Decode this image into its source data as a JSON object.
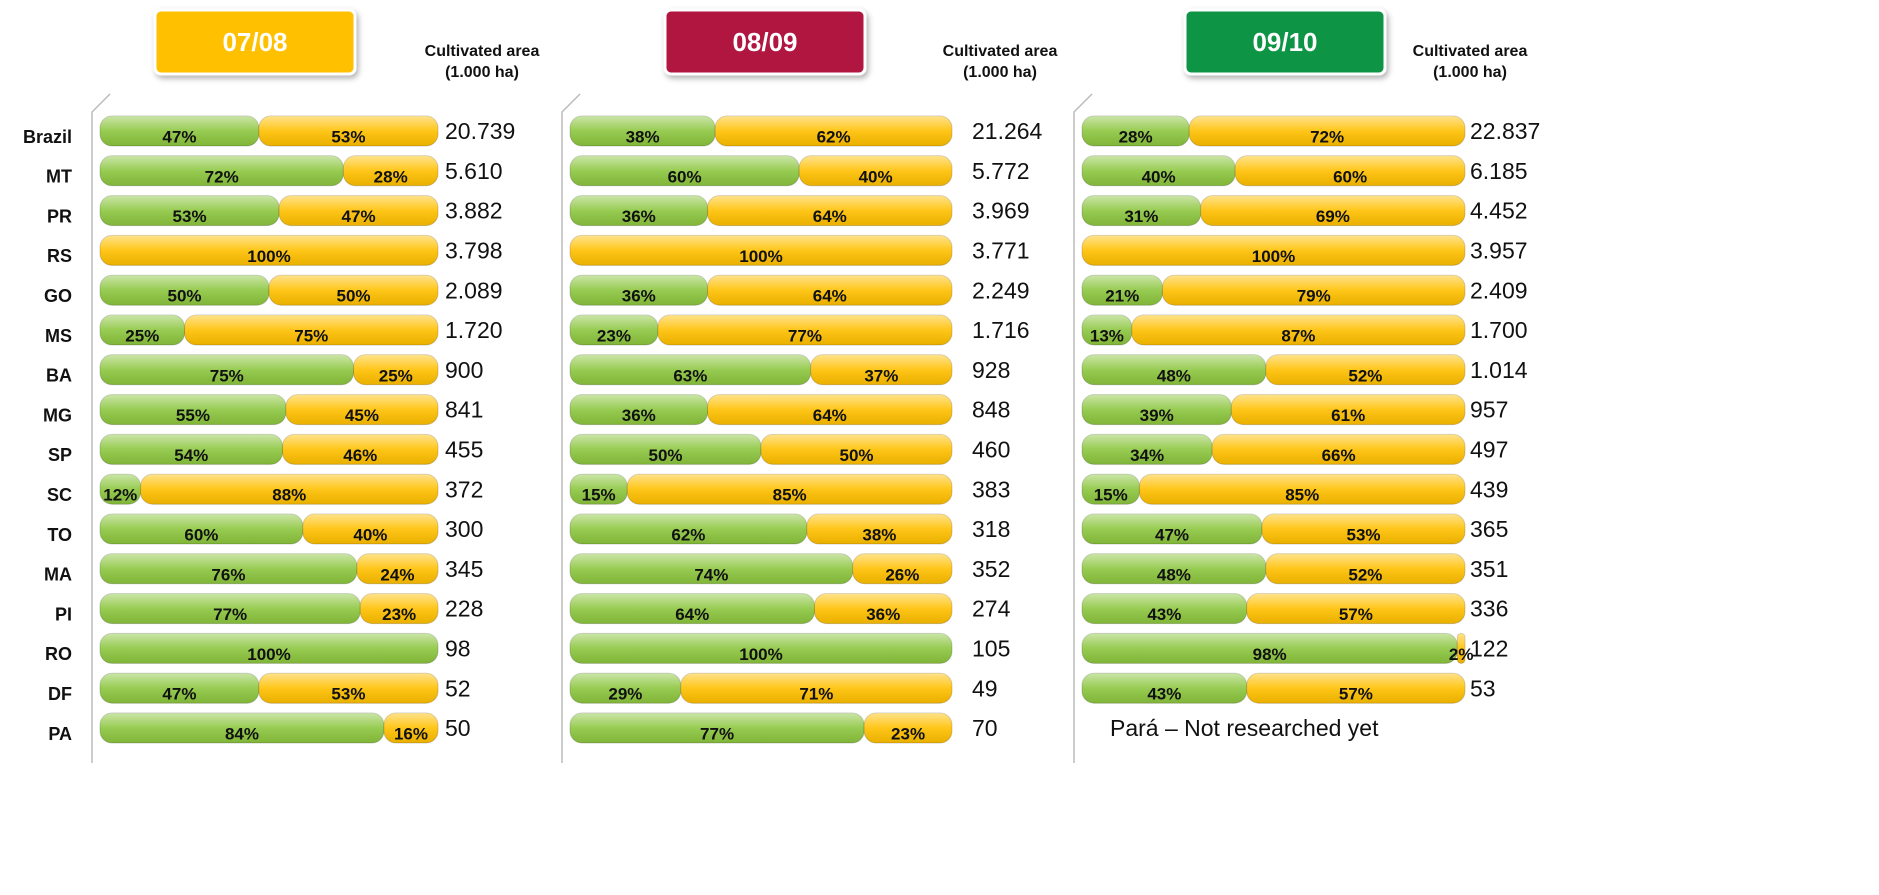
{
  "chart_data": [
    {
      "type": "bar",
      "stacked": true,
      "orientation": "horizontal",
      "title": "07/08",
      "title_color": "#ffc000",
      "subtitle": "Cultivated area",
      "unit": "(1.000 ha)",
      "categories": [
        "Brazil",
        "MT",
        "PR",
        "RS",
        "GO",
        "MS",
        "BA",
        "MG",
        "SP",
        "SC",
        "TO",
        "MA",
        "PI",
        "RO",
        "DF",
        "PA"
      ],
      "xlim": [
        0,
        100
      ],
      "series": [
        {
          "color": "#8cc63f",
          "values": [
            47,
            72,
            53,
            0,
            50,
            25,
            75,
            55,
            54,
            12,
            60,
            76,
            77,
            100,
            47,
            84
          ],
          "value_labels": [
            "47%",
            "72%",
            "53%",
            null,
            "50%",
            "25%",
            "75%",
            "55%",
            "54%",
            "12%",
            "60%",
            "76%",
            "77%",
            "100%",
            "47%",
            "84%"
          ]
        },
        {
          "color": "#ffc000",
          "values": [
            53,
            28,
            47,
            100,
            50,
            75,
            25,
            45,
            46,
            88,
            40,
            24,
            23,
            0,
            53,
            16
          ],
          "value_labels": [
            "53%",
            "28%",
            "47%",
            "100%",
            "50%",
            "75%",
            "25%",
            "45%",
            "46%",
            "88%",
            "40%",
            "24%",
            "23%",
            null,
            "53%",
            "16%"
          ]
        }
      ],
      "area": {
        "values": [
          20739,
          5610,
          3882,
          3798,
          2089,
          1720,
          900,
          841,
          455,
          372,
          300,
          345,
          228,
          98,
          52,
          50
        ],
        "value_labels": [
          "20.739",
          "5.610",
          "3.882",
          "3.798",
          "2.089",
          "1.720",
          "900",
          "841",
          "455",
          "372",
          "300",
          "345",
          "228",
          "98",
          "52",
          "50"
        ]
      }
    },
    {
      "type": "bar",
      "stacked": true,
      "orientation": "horizontal",
      "title": "08/09",
      "title_color": "#b0183f",
      "subtitle": "Cultivated area",
      "unit": "(1.000 ha)",
      "xlim": [
        0,
        100
      ],
      "series": [
        {
          "color": "#8cc63f",
          "values": [
            38,
            60,
            36,
            0,
            36,
            23,
            63,
            36,
            50,
            15,
            62,
            74,
            64,
            100,
            29,
            77
          ],
          "value_labels": [
            "38%",
            "60%",
            "36%",
            null,
            "36%",
            "23%",
            "63%",
            "36%",
            "50%",
            "15%",
            "62%",
            "74%",
            "64%",
            "100%",
            "29%",
            "77%"
          ]
        },
        {
          "color": "#ffc000",
          "values": [
            62,
            40,
            64,
            100,
            64,
            77,
            37,
            64,
            50,
            85,
            38,
            26,
            36,
            0,
            71,
            23
          ],
          "value_labels": [
            "62%",
            "40%",
            "64%",
            "100%",
            "64%",
            "77%",
            "37%",
            "64%",
            "50%",
            "85%",
            "38%",
            "26%",
            "36%",
            null,
            "71%",
            "23%"
          ]
        }
      ],
      "area": {
        "values": [
          21264,
          5772,
          3969,
          3771,
          2249,
          1716,
          928,
          848,
          460,
          383,
          318,
          352,
          274,
          105,
          49,
          70
        ],
        "value_labels": [
          "21.264",
          "5.772",
          "3.969",
          "3.771",
          "2.249",
          "1.716",
          "928",
          "848",
          "460",
          "383",
          "318",
          "352",
          "274",
          "105",
          "49",
          "70"
        ]
      }
    },
    {
      "type": "bar",
      "stacked": true,
      "orientation": "horizontal",
      "title": "09/10",
      "title_color": "#0e9444",
      "subtitle": "Cultivated area",
      "unit": "(1.000 ha)",
      "xlim": [
        0,
        100
      ],
      "annotation": "Pará – Not researched yet",
      "series": [
        {
          "color": "#8cc63f",
          "values": [
            28,
            40,
            31,
            0,
            21,
            13,
            48,
            39,
            34,
            15,
            47,
            48,
            43,
            98,
            43,
            null
          ],
          "value_labels": [
            "28%",
            "40%",
            "31%",
            null,
            "21%",
            "13%",
            "48%",
            "39%",
            "34%",
            "15%",
            "47%",
            "48%",
            "43%",
            "98%",
            "43%",
            null
          ]
        },
        {
          "color": "#ffc000",
          "values": [
            72,
            60,
            69,
            100,
            79,
            87,
            52,
            61,
            66,
            85,
            53,
            52,
            57,
            2,
            57,
            null
          ],
          "value_labels": [
            "72%",
            "60%",
            "69%",
            "100%",
            "79%",
            "87%",
            "52%",
            "61%",
            "66%",
            "85%",
            "53%",
            "52%",
            "57%",
            "2%",
            "57%",
            null
          ]
        }
      ],
      "area": {
        "values": [
          22837,
          6185,
          4452,
          3957,
          2409,
          1700,
          1014,
          957,
          497,
          439,
          365,
          351,
          336,
          122,
          53,
          null
        ],
        "value_labels": [
          "22.837",
          "6.185",
          "4.452",
          "3.957",
          "2.409",
          "1.700",
          "1.014",
          "957",
          "497",
          "439",
          "365",
          "351",
          "336",
          "122",
          "53",
          null
        ]
      }
    }
  ]
}
